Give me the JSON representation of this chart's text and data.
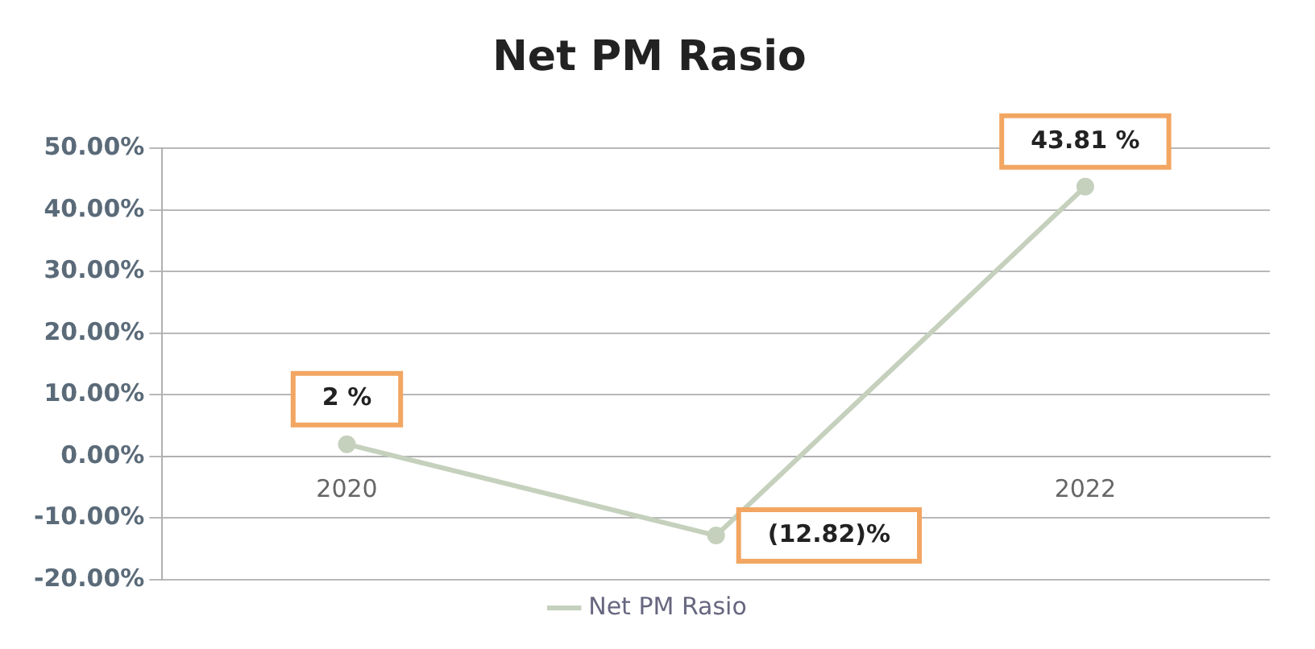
{
  "chart_data": {
    "type": "line",
    "title": "Net PM Rasio",
    "categories": [
      "2020",
      null,
      "2022"
    ],
    "series": [
      {
        "name": "Net PM Rasio",
        "color": "#c5d0bd",
        "values": [
          2,
          -12.82,
          43.81
        ],
        "value_labels": [
          "2 %",
          "(12.82)%",
          "43.81 %"
        ]
      }
    ],
    "ylim": [
      -20,
      50
    ],
    "yticks": [
      {
        "value": -20,
        "label": "-20.00%"
      },
      {
        "value": -10,
        "label": "-10.00%"
      },
      {
        "value": 0,
        "label": "0.00%"
      },
      {
        "value": 10,
        "label": "10.00%"
      },
      {
        "value": 20,
        "label": "20.00%"
      },
      {
        "value": 30,
        "label": "30.00%"
      },
      {
        "value": 40,
        "label": "40.00%"
      },
      {
        "value": 50,
        "label": "50.00%"
      }
    ],
    "grid": "y",
    "legend": "bottom",
    "marker": "circle",
    "line_style": "solid"
  }
}
